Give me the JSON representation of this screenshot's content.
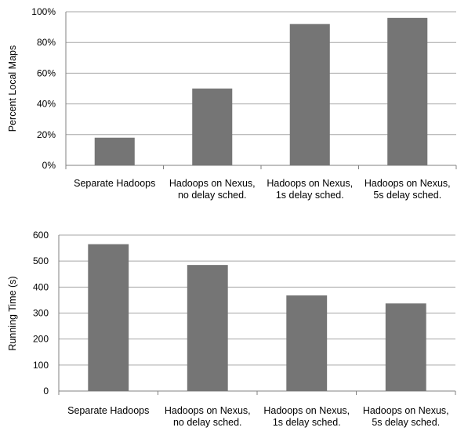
{
  "colors": {
    "bar": "#757575",
    "grid": "#a6a6a6",
    "axis": "#808080"
  },
  "chart_data": [
    {
      "type": "bar",
      "title": "",
      "xlabel": "",
      "ylabel": "Percent Local Maps",
      "categories": [
        [
          "Separate Hadoops"
        ],
        [
          "Hadoops on Nexus,",
          "no delay sched."
        ],
        [
          "Hadoops on Nexus,",
          "1s delay sched."
        ],
        [
          "Hadoops on Nexus,",
          "5s delay sched."
        ]
      ],
      "values": [
        18,
        50,
        92,
        96
      ],
      "ylim": [
        0,
        100
      ],
      "yticks": [
        0,
        20,
        40,
        60,
        80,
        100
      ],
      "ytick_labels": [
        "0%",
        "20%",
        "40%",
        "60%",
        "80%",
        "100%"
      ],
      "grid": true,
      "legend": "none"
    },
    {
      "type": "bar",
      "title": "",
      "xlabel": "",
      "ylabel": "Running Time (s)",
      "categories": [
        [
          "Separate Hadoops"
        ],
        [
          "Hadoops on Nexus,",
          "no delay sched."
        ],
        [
          "Hadoops on Nexus,",
          "1s delay sched."
        ],
        [
          "Hadoops on Nexus,",
          "5s delay sched."
        ]
      ],
      "values": [
        565,
        485,
        368,
        337
      ],
      "ylim": [
        0,
        600
      ],
      "yticks": [
        0,
        100,
        200,
        300,
        400,
        500,
        600
      ],
      "ytick_labels": [
        "0",
        "100",
        "200",
        "300",
        "400",
        "500",
        "600"
      ],
      "grid": true,
      "legend": "none"
    }
  ]
}
